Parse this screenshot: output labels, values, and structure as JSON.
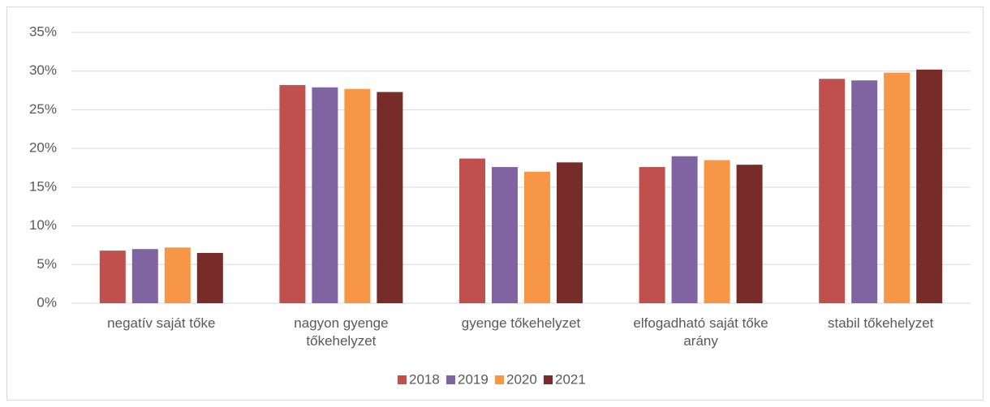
{
  "chart_data": {
    "type": "bar",
    "categories": [
      "negatív saját tőke",
      "nagyon gyenge tőkehelyzet",
      "gyenge tőkehelyzet",
      "elfogadható saját tőke arány",
      "stabil tőkehelyzet"
    ],
    "series": [
      {
        "name": "2018",
        "color": "#c0504d",
        "values": [
          6.8,
          28.2,
          18.7,
          17.6,
          29.0
        ]
      },
      {
        "name": "2019",
        "color": "#8064a2",
        "values": [
          7.0,
          27.9,
          17.6,
          19.0,
          28.8
        ]
      },
      {
        "name": "2020",
        "color": "#f79646",
        "values": [
          7.2,
          27.7,
          17.0,
          18.5,
          29.8
        ]
      },
      {
        "name": "2021",
        "color": "#772c2a",
        "values": [
          6.5,
          27.3,
          18.2,
          17.9,
          30.2
        ]
      }
    ],
    "ylim": [
      0,
      35
    ],
    "yticks": [
      {
        "value": 0,
        "label": "0%"
      },
      {
        "value": 5,
        "label": "5%"
      },
      {
        "value": 10,
        "label": "10%"
      },
      {
        "value": 15,
        "label": "15%"
      },
      {
        "value": 20,
        "label": "20%"
      },
      {
        "value": 25,
        "label": "25%"
      },
      {
        "value": 30,
        "label": "30%"
      },
      {
        "value": 35,
        "label": "35%"
      }
    ],
    "grid": true,
    "legend": "bottom"
  }
}
